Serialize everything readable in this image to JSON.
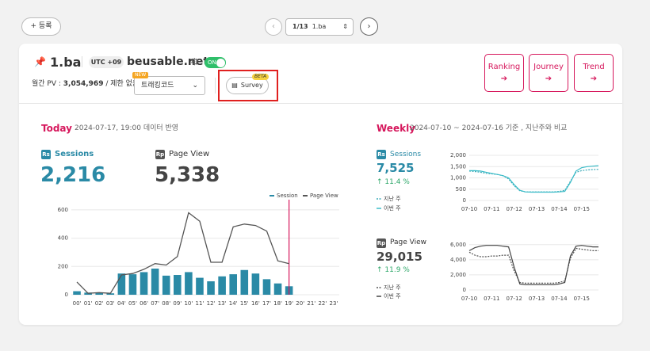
{
  "toolbar": {
    "add_button": "등록",
    "page_indicator": "1/13",
    "page_name": "1.ba"
  },
  "site": {
    "name": "1.ba",
    "timezone": "UTC +09",
    "domain": "beusable.net",
    "toggle": "ON",
    "pv_label": "월간 PV :",
    "pv_value": "3,054,969",
    "pv_limit": "/ 제한 없음",
    "new_badge": "NEW",
    "tracking_select": "트래킹코드",
    "beta_badge": "BETA",
    "survey_button": "Survey",
    "buttons": [
      "Ranking",
      "Journey",
      "Trend"
    ]
  },
  "today": {
    "title": "Today",
    "date": "2024-07-17, 19:00 데이터 반영",
    "sessions_icon": "Rs",
    "sessions_label": "Sessions",
    "sessions_value": "2,216",
    "pageview_icon": "Rp",
    "pageview_label": "Page View",
    "pageview_value": "5,338"
  },
  "weekly": {
    "title": "Weekly",
    "date": "2024-07-10 ~ 2024-07-16 기준 , 지난주와 비교",
    "sessions_icon": "Rs",
    "sessions_label": "Sessions",
    "sessions_value": "7,525",
    "sessions_change": "11.4 %",
    "pageview_icon": "Rp",
    "pageview_label": "Page View",
    "pageview_value": "29,015",
    "pageview_change": "11.9 %"
  },
  "chart_data": [
    {
      "type": "combo",
      "categories": [
        "00'",
        "01'",
        "02'",
        "03'",
        "04'",
        "05'",
        "06'",
        "07'",
        "08'",
        "09'",
        "10'",
        "11'",
        "12'",
        "13'",
        "14'",
        "15'",
        "16'",
        "17'",
        "18'",
        "19'",
        "20'",
        "21'",
        "22'",
        "23'"
      ],
      "series": [
        {
          "name": "Session",
          "type": "bar",
          "color": "#2a8aa6",
          "values": [
            25,
            15,
            15,
            10,
            150,
            145,
            160,
            185,
            135,
            140,
            160,
            120,
            95,
            130,
            145,
            175,
            150,
            110,
            80,
            60,
            null,
            null,
            null,
            null
          ]
        },
        {
          "name": "Page View",
          "type": "line",
          "color": "#555555",
          "values": [
            90,
            10,
            15,
            10,
            140,
            150,
            180,
            220,
            210,
            270,
            580,
            520,
            230,
            230,
            480,
            500,
            490,
            450,
            240,
            220,
            null,
            null,
            null,
            null
          ]
        }
      ],
      "ylim": [
        0,
        650
      ],
      "yticks": [
        0,
        200,
        400,
        600
      ],
      "legend": "top-right"
    },
    {
      "type": "line",
      "categories": [
        "07-10",
        null,
        null,
        null,
        "07-11",
        null,
        null,
        null,
        "07-12",
        null,
        null,
        null,
        "07-13",
        null,
        null,
        null,
        "07-14",
        null,
        null,
        null,
        "07-15",
        null,
        null,
        null
      ],
      "series": [
        {
          "name": "지난 주",
          "style": "dotted",
          "color": "#3aaab8",
          "values": [
            1300,
            1280,
            1250,
            1200,
            1180,
            1150,
            1100,
            950,
            650,
            430,
            380,
            380,
            380,
            380,
            380,
            380,
            400,
            450,
            850,
            1250,
            1320,
            1350,
            1370,
            1380
          ]
        },
        {
          "name": "이번 주",
          "style": "solid",
          "color": "#3bbcc8",
          "values": [
            1320,
            1320,
            1300,
            1250,
            1200,
            1150,
            1100,
            1000,
            700,
            450,
            380,
            370,
            370,
            370,
            370,
            370,
            380,
            400,
            800,
            1300,
            1450,
            1500,
            1520,
            1540
          ]
        }
      ],
      "ylim": [
        0,
        2000
      ],
      "yticks": [
        0,
        500,
        {
          "value": 1000,
          "label": "1,000"
        },
        {
          "value": 1500,
          "label": "1,500"
        },
        {
          "value": 2000,
          "label": "2,000"
        }
      ]
    },
    {
      "type": "line",
      "categories": [
        "07-10",
        null,
        null,
        null,
        "07-11",
        null,
        null,
        null,
        "07-12",
        null,
        null,
        null,
        "07-13",
        null,
        null,
        null,
        "07-14",
        null,
        null,
        null,
        "07-15",
        null,
        null,
        null
      ],
      "series": [
        {
          "name": "지난 주",
          "style": "dotted",
          "color": "#555555",
          "values": [
            5000,
            4600,
            4400,
            4400,
            4500,
            4500,
            4600,
            4600,
            2500,
            1000,
            900,
            900,
            900,
            900,
            900,
            900,
            1000,
            1200,
            4200,
            5500,
            5400,
            5300,
            5200,
            5200
          ]
        },
        {
          "name": "이번 주",
          "style": "solid",
          "color": "#444444",
          "values": [
            5200,
            5600,
            5800,
            5900,
            5900,
            5900,
            5800,
            5700,
            3000,
            800,
            700,
            700,
            700,
            700,
            700,
            700,
            800,
            1000,
            4500,
            5800,
            5900,
            5800,
            5700,
            5700
          ]
        }
      ],
      "ylim": [
        0,
        6500
      ],
      "yticks": [
        0,
        {
          "value": 2000,
          "label": "2,000"
        },
        {
          "value": 4000,
          "label": "4,000"
        },
        {
          "value": 6000,
          "label": "6,000"
        }
      ]
    }
  ]
}
